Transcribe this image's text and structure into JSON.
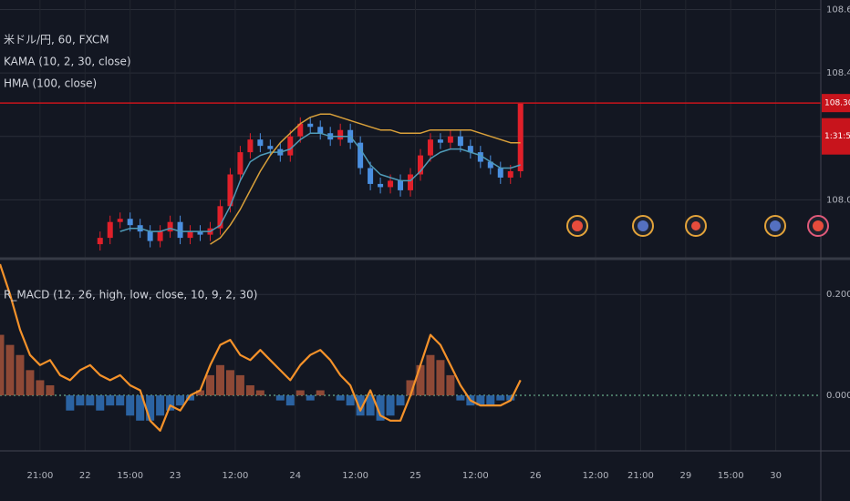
{
  "chart_data": [
    {
      "type": "candlestick",
      "title": "米ドル/円, 60, FXCM",
      "x": [
        20,
        22,
        24,
        26,
        28,
        30,
        32,
        34,
        36,
        38,
        40,
        42,
        44,
        46,
        48,
        50,
        52,
        54,
        56,
        58,
        60,
        62,
        64,
        66,
        68,
        70,
        72,
        74,
        76,
        78,
        80,
        82,
        84,
        86,
        88,
        90,
        92,
        94,
        96,
        98,
        100,
        102,
        104
      ],
      "open": [
        107.86,
        107.88,
        107.93,
        107.94,
        107.92,
        107.9,
        107.87,
        107.9,
        107.93,
        107.88,
        107.9,
        107.89,
        107.91,
        107.98,
        108.08,
        108.15,
        108.19,
        108.17,
        108.16,
        108.14,
        108.2,
        108.24,
        108.23,
        108.21,
        108.19,
        108.22,
        108.18,
        108.1,
        108.05,
        108.04,
        108.06,
        108.03,
        108.08,
        108.14,
        108.19,
        108.18,
        108.2,
        108.17,
        108.15,
        108.12,
        108.1,
        108.07,
        108.09
      ],
      "high": [
        107.9,
        107.95,
        107.96,
        107.96,
        107.94,
        107.92,
        107.92,
        107.95,
        107.95,
        107.92,
        107.92,
        107.93,
        108.0,
        108.1,
        108.17,
        108.21,
        108.21,
        108.19,
        108.18,
        108.22,
        108.26,
        108.26,
        108.25,
        108.23,
        108.24,
        108.24,
        108.2,
        108.12,
        108.07,
        108.08,
        108.08,
        108.1,
        108.16,
        108.21,
        108.21,
        108.22,
        108.22,
        108.19,
        108.17,
        108.14,
        108.12,
        108.11,
        108.305
      ],
      "low": [
        107.84,
        107.86,
        107.91,
        107.9,
        107.88,
        107.85,
        107.85,
        107.88,
        107.86,
        107.86,
        107.87,
        107.87,
        107.89,
        107.96,
        108.06,
        108.13,
        108.15,
        108.14,
        108.12,
        108.12,
        108.18,
        108.21,
        108.19,
        108.17,
        108.17,
        108.16,
        108.08,
        108.03,
        108.02,
        108.02,
        108.01,
        108.01,
        108.06,
        108.12,
        108.16,
        108.16,
        108.15,
        108.13,
        108.1,
        108.08,
        108.05,
        108.05,
        108.07
      ],
      "close": [
        107.88,
        107.93,
        107.94,
        107.92,
        107.9,
        107.87,
        107.9,
        107.93,
        107.88,
        107.9,
        107.89,
        107.91,
        107.98,
        108.08,
        108.15,
        108.19,
        108.17,
        108.16,
        108.14,
        108.2,
        108.24,
        108.23,
        108.21,
        108.19,
        108.22,
        108.18,
        108.1,
        108.05,
        108.04,
        108.06,
        108.03,
        108.08,
        108.14,
        108.19,
        108.18,
        108.2,
        108.17,
        108.15,
        108.12,
        108.1,
        108.07,
        108.09,
        108.305
      ],
      "up_color": "#e0202a",
      "down_color": "#4a8fe0",
      "series": [
        {
          "name": "KAMA (10, 2, 30, close)",
          "color": "#4f9bb8",
          "values": [
            null,
            null,
            107.9,
            107.91,
            107.91,
            107.9,
            107.9,
            107.91,
            107.9,
            107.9,
            107.9,
            107.9,
            107.92,
            107.98,
            108.06,
            108.12,
            108.14,
            108.15,
            108.15,
            108.16,
            108.19,
            108.21,
            108.21,
            108.2,
            108.2,
            108.2,
            108.16,
            108.11,
            108.08,
            108.07,
            108.06,
            108.06,
            108.09,
            108.13,
            108.15,
            108.16,
            108.16,
            108.15,
            108.14,
            108.12,
            108.1,
            108.1,
            108.11
          ]
        },
        {
          "name": "HMA (100, close)",
          "color": "#d9a03a",
          "values": [
            null,
            null,
            null,
            null,
            null,
            null,
            null,
            null,
            null,
            null,
            null,
            107.86,
            107.88,
            107.92,
            107.97,
            108.03,
            108.09,
            108.14,
            108.18,
            108.21,
            108.24,
            108.26,
            108.27,
            108.27,
            108.26,
            108.25,
            108.24,
            108.23,
            108.22,
            108.22,
            108.21,
            108.21,
            108.21,
            108.22,
            108.22,
            108.22,
            108.22,
            108.22,
            108.21,
            108.2,
            108.19,
            108.18,
            108.18
          ]
        }
      ],
      "price_line": 108.305,
      "price_line_color": "#c8141c",
      "countdown": "1:31:59",
      "xlim": [
        0,
        164
      ],
      "ylim": [
        107.82,
        108.63
      ],
      "yticks": [
        {
          "value": 108.6,
          "label": "108.600"
        },
        {
          "value": 108.4,
          "label": "108.400"
        },
        {
          "value": 108.2,
          "label": "108.200"
        },
        {
          "value": 108.0,
          "label": "108.000"
        }
      ],
      "grid": true
    },
    {
      "type": "macd",
      "title": "R_MACD (12, 26, high, low, close, 10, 9, 2, 30)",
      "x": [
        0,
        2,
        4,
        6,
        8,
        10,
        12,
        14,
        16,
        18,
        20,
        22,
        24,
        26,
        28,
        30,
        32,
        34,
        36,
        38,
        40,
        42,
        44,
        46,
        48,
        50,
        52,
        54,
        56,
        58,
        60,
        62,
        64,
        66,
        68,
        70,
        72,
        74,
        76,
        78,
        80,
        82,
        84,
        86,
        88,
        90,
        92,
        94,
        96,
        98,
        100,
        102,
        104
      ],
      "histogram": [
        0.12,
        0.1,
        0.08,
        0.05,
        0.03,
        0.02,
        0.0,
        -0.03,
        -0.02,
        -0.02,
        -0.03,
        -0.02,
        -0.02,
        -0.04,
        -0.05,
        -0.05,
        -0.04,
        -0.03,
        -0.02,
        -0.01,
        0.01,
        0.04,
        0.06,
        0.05,
        0.04,
        0.02,
        0.01,
        0.0,
        -0.01,
        -0.02,
        0.01,
        -0.01,
        0.01,
        0.0,
        -0.01,
        -0.02,
        -0.04,
        -0.04,
        -0.05,
        -0.04,
        -0.02,
        0.03,
        0.06,
        0.08,
        0.07,
        0.04,
        -0.01,
        -0.02,
        -0.02,
        -0.02,
        -0.01,
        -0.01,
        0.0
      ],
      "values": [
        0.26,
        0.2,
        0.13,
        0.08,
        0.06,
        0.07,
        0.04,
        0.03,
        0.05,
        0.06,
        0.04,
        0.03,
        0.04,
        0.02,
        0.01,
        -0.05,
        -0.07,
        -0.02,
        -0.03,
        0.0,
        0.01,
        0.06,
        0.1,
        0.11,
        0.08,
        0.07,
        0.09,
        0.07,
        0.05,
        0.03,
        0.06,
        0.08,
        0.09,
        0.07,
        0.04,
        0.02,
        -0.03,
        0.01,
        -0.04,
        -0.05,
        -0.05,
        0.0,
        0.06,
        0.12,
        0.1,
        0.06,
        0.02,
        -0.01,
        -0.02,
        -0.02,
        -0.02,
        -0.01,
        0.03
      ],
      "color": "#f5922a",
      "pos_color": "#9c4f38",
      "neg_color": "#2f6cb0",
      "xlim": [
        0,
        164
      ],
      "ylim": [
        -0.11,
        0.26
      ],
      "yticks": [
        {
          "value": 0.2,
          "label": "0.200"
        },
        {
          "value": 0,
          "label": "0.000"
        }
      ],
      "xticks": [
        {
          "value": 8,
          "label": "21:00"
        },
        {
          "value": 17,
          "label": "22"
        },
        {
          "value": 26,
          "label": "15:00"
        },
        {
          "value": 35,
          "label": "23"
        },
        {
          "value": 47,
          "label": "12:00"
        },
        {
          "value": 59,
          "label": "24"
        },
        {
          "value": 71,
          "label": "12:00"
        },
        {
          "value": 83,
          "label": "25"
        },
        {
          "value": 95,
          "label": "12:00"
        },
        {
          "value": 107,
          "label": "26"
        },
        {
          "value": 119,
          "label": "12:00"
        },
        {
          "value": 128,
          "label": "21:00"
        },
        {
          "value": 137,
          "label": "29"
        },
        {
          "value": 146,
          "label": "15:00"
        },
        {
          "value": 155,
          "label": "30"
        }
      ],
      "grid": true
    }
  ]
}
